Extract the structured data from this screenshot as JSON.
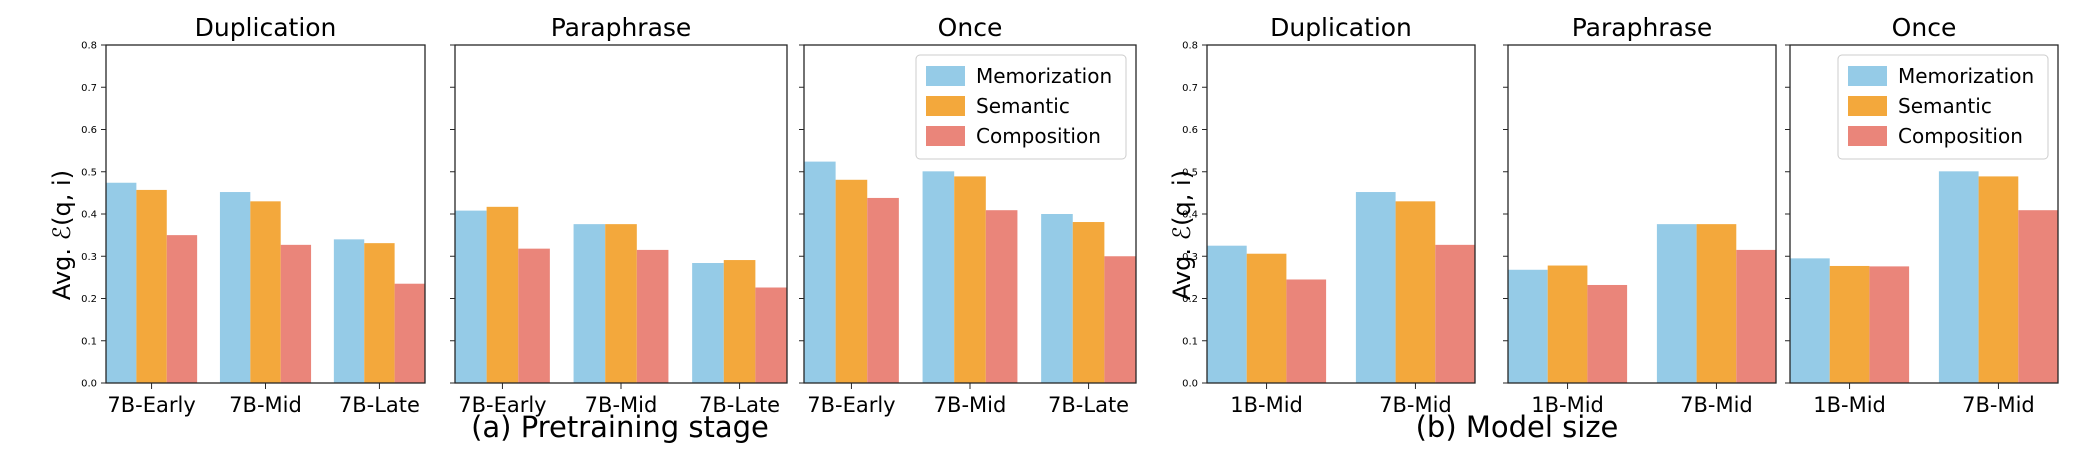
{
  "colors": {
    "memorization": "#95cbe7",
    "semantic": "#f3a83c",
    "composition": "#ea857a"
  },
  "groups": [
    {
      "caption": "(a) Pretraining stage",
      "ylabel": "Avg. ℰ(q, i)"
    },
    {
      "caption": "(b) Model size",
      "ylabel": "Avg. ℰ(q, i)"
    }
  ],
  "chart_data": [
    {
      "type": "bar",
      "group": 0,
      "title": "Duplication",
      "categories": [
        "7B-Early",
        "7B-Mid",
        "7B-Late"
      ],
      "series": [
        {
          "name": "Memorization",
          "values": [
            0.474,
            0.452,
            0.34
          ]
        },
        {
          "name": "Semantic",
          "values": [
            0.457,
            0.43,
            0.331
          ]
        },
        {
          "name": "Composition",
          "values": [
            0.35,
            0.327,
            0.235
          ]
        }
      ],
      "ylim": [
        0,
        0.8
      ],
      "yticks": [
        "0.0",
        "0.1",
        "0.2",
        "0.3",
        "0.4",
        "0.5",
        "0.6",
        "0.7",
        "0.8"
      ],
      "show_yticks": true,
      "legend": ""
    },
    {
      "type": "bar",
      "group": 0,
      "title": "Paraphrase",
      "categories": [
        "7B-Early",
        "7B-Mid",
        "7B-Late"
      ],
      "series": [
        {
          "name": "Memorization",
          "values": [
            0.408,
            0.376,
            0.284
          ]
        },
        {
          "name": "Semantic",
          "values": [
            0.417,
            0.376,
            0.291
          ]
        },
        {
          "name": "Composition",
          "values": [
            0.318,
            0.315,
            0.226
          ]
        }
      ],
      "ylim": [
        0,
        0.8
      ],
      "show_yticks": false,
      "legend": ""
    },
    {
      "type": "bar",
      "group": 0,
      "title": "Once",
      "categories": [
        "7B-Early",
        "7B-Mid",
        "7B-Late"
      ],
      "series": [
        {
          "name": "Memorization",
          "values": [
            0.524,
            0.501,
            0.4
          ]
        },
        {
          "name": "Semantic",
          "values": [
            0.481,
            0.489,
            0.381
          ]
        },
        {
          "name": "Composition",
          "values": [
            0.438,
            0.409,
            0.3
          ]
        }
      ],
      "ylim": [
        0,
        0.8
      ],
      "show_yticks": false,
      "legend": "top-right"
    },
    {
      "type": "bar",
      "group": 1,
      "title": "Duplication",
      "categories": [
        "1B-Mid",
        "7B-Mid"
      ],
      "series": [
        {
          "name": "Memorization",
          "values": [
            0.325,
            0.452
          ]
        },
        {
          "name": "Semantic",
          "values": [
            0.306,
            0.43
          ]
        },
        {
          "name": "Composition",
          "values": [
            0.245,
            0.327
          ]
        }
      ],
      "ylim": [
        0,
        0.8
      ],
      "yticks": [
        "0.0",
        "0.1",
        "0.2",
        "0.3",
        "0.4",
        "0.5",
        "0.6",
        "0.7",
        "0.8"
      ],
      "show_yticks": true,
      "legend": ""
    },
    {
      "type": "bar",
      "group": 1,
      "title": "Paraphrase",
      "categories": [
        "1B-Mid",
        "7B-Mid"
      ],
      "series": [
        {
          "name": "Memorization",
          "values": [
            0.268,
            0.376
          ]
        },
        {
          "name": "Semantic",
          "values": [
            0.278,
            0.376
          ]
        },
        {
          "name": "Composition",
          "values": [
            0.232,
            0.315
          ]
        }
      ],
      "ylim": [
        0,
        0.8
      ],
      "show_yticks": false,
      "legend": ""
    },
    {
      "type": "bar",
      "group": 1,
      "title": "Once",
      "categories": [
        "1B-Mid",
        "7B-Mid"
      ],
      "series": [
        {
          "name": "Memorization",
          "values": [
            0.295,
            0.501
          ]
        },
        {
          "name": "Semantic",
          "values": [
            0.277,
            0.489
          ]
        },
        {
          "name": "Composition",
          "values": [
            0.276,
            0.409
          ]
        }
      ],
      "ylim": [
        0,
        0.8
      ],
      "show_yticks": false,
      "legend": "top-right"
    }
  ]
}
